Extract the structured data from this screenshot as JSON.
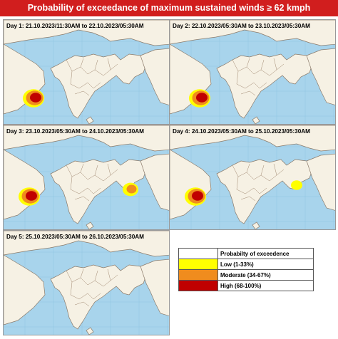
{
  "title": "Probability  of exceedance of maximum sustained winds ≥ 62 kmph",
  "panels": [
    {
      "label": "Day 1: 21.10.2023/11:30AM to 22.10.2023/05:30AM",
      "arabian_sea": "high",
      "bay_of_bengal": "none"
    },
    {
      "label": "Day 2: 22.10.2023/05:30AM to 23.10.2023/05:30AM",
      "arabian_sea": "high",
      "bay_of_bengal": "none"
    },
    {
      "label": "Day 3: 23.10.2023/05:30AM to 24.10.2023/05:30AM",
      "arabian_sea": "high",
      "bay_of_bengal": "moderate"
    },
    {
      "label": "Day 4: 24.10.2023/05:30AM to 25.10.2023/05:30AM",
      "arabian_sea": "high",
      "bay_of_bengal": "low"
    },
    {
      "label": "Day 5: 25.10.2023/05:30AM to 26.10.2023/05:30AM",
      "arabian_sea": "none",
      "bay_of_bengal": "none"
    }
  ],
  "legend": {
    "header": "Probabilty of exceedence",
    "items": [
      {
        "label": "Low (1-33%)",
        "color": "#ffff00"
      },
      {
        "label": "Moderate (34-67%)",
        "color": "#f08c1e"
      },
      {
        "label": "High (68-100%)",
        "color": "#c00000"
      }
    ]
  },
  "colors": {
    "ocean": "#a8d4ec",
    "land": "#f6f1e4",
    "title_bar": "#d11e1e"
  }
}
